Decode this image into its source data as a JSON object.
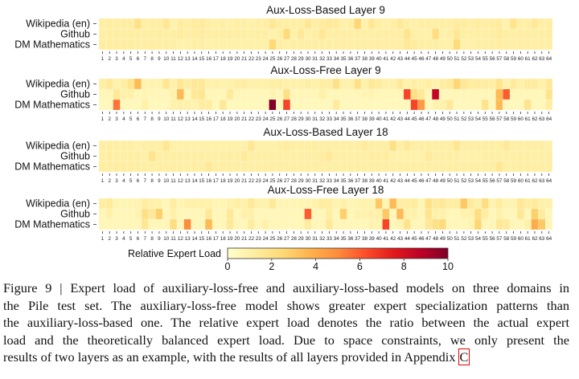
{
  "chart_data": {
    "type": "heatmap",
    "colormap": "YlOrRd",
    "clim": [
      0,
      10
    ],
    "colorbar_label": "Relative Expert Load",
    "colorbar_ticks": [
      "0",
      "2",
      "4",
      "6",
      "8",
      "10"
    ],
    "row_labels": [
      "Wikipedia (en)",
      "Github",
      "DM Mathematics"
    ],
    "column_labels": [
      "1",
      "2",
      "3",
      "4",
      "5",
      "6",
      "7",
      "8",
      "9",
      "10",
      "11",
      "12",
      "13",
      "14",
      "15",
      "16",
      "17",
      "18",
      "19",
      "20",
      "21",
      "22",
      "23",
      "24",
      "25",
      "26",
      "27",
      "28",
      "29",
      "30",
      "31",
      "32",
      "33",
      "34",
      "35",
      "36",
      "37",
      "38",
      "39",
      "40",
      "41",
      "42",
      "43",
      "44",
      "45",
      "46",
      "47",
      "48",
      "49",
      "50",
      "51",
      "52",
      "53",
      "54",
      "55",
      "56",
      "57",
      "58",
      "59",
      "60",
      "61",
      "62",
      "63",
      "64"
    ],
    "panels": [
      {
        "title": "Aux-Loss-Based Layer 9",
        "values": [
          [
            1.1,
            1.2,
            1.1,
            1.2,
            1.2,
            2.0,
            1.1,
            1.1,
            1.1,
            1.6,
            0.9,
            1.3,
            1.1,
            1.3,
            1.4,
            1.1,
            1.0,
            1.1,
            1.0,
            1.1,
            1.1,
            1.0,
            1.1,
            1.1,
            1.6,
            1.2,
            1.1,
            1.1,
            1.1,
            1.6,
            1.1,
            1.3,
            1.5,
            1.4,
            1.0,
            1.1,
            2.6,
            1.0,
            1.6,
            1.1,
            1.0,
            1.1,
            1.5,
            1.1,
            1.0,
            1.1,
            1.1,
            1.1,
            1.1,
            1.1,
            1.3,
            1.3,
            1.1,
            1.3,
            1.1,
            1.2,
            1.3,
            0.9,
            1.8,
            1.1,
            1.1,
            1.5,
            1.1,
            1.2
          ],
          [
            1.1,
            1.1,
            1.2,
            1.1,
            1.2,
            1.1,
            1.1,
            1.1,
            1.2,
            1.1,
            1.1,
            1.3,
            1.1,
            1.2,
            1.3,
            1.1,
            1.1,
            1.1,
            1.1,
            1.1,
            1.1,
            1.1,
            1.1,
            1.1,
            0.9,
            1.1,
            2.4,
            1.0,
            1.5,
            1.0,
            1.1,
            1.6,
            1.1,
            1.1,
            1.1,
            1.1,
            1.1,
            1.1,
            1.1,
            1.1,
            1.1,
            1.1,
            1.1,
            1.8,
            1.1,
            1.0,
            1.0,
            2.2,
            1.0,
            1.1,
            1.6,
            1.1,
            1.1,
            1.1,
            1.1,
            1.1,
            1.4,
            1.1,
            1.1,
            1.1,
            1.1,
            1.1,
            1.1,
            1.2
          ],
          [
            1.2,
            1.2,
            1.2,
            1.2,
            1.2,
            1.1,
            1.1,
            1.2,
            1.1,
            1.1,
            1.1,
            0.9,
            1.0,
            1.1,
            1.1,
            1.0,
            1.0,
            1.0,
            1.0,
            1.0,
            1.0,
            1.0,
            1.0,
            1.0,
            2.5,
            1.1,
            1.0,
            1.1,
            1.1,
            1.1,
            1.1,
            1.1,
            1.1,
            1.1,
            1.1,
            1.1,
            1.1,
            1.1,
            1.1,
            1.1,
            1.1,
            1.1,
            1.1,
            1.5,
            1.4,
            1.1,
            1.1,
            1.1,
            1.0,
            1.0,
            2.4,
            1.0,
            1.0,
            1.1,
            1.1,
            1.1,
            1.2,
            1.1,
            1.1,
            1.1,
            1.1,
            1.1,
            1.1,
            1.1
          ]
        ]
      },
      {
        "title": "Aux-Loss-Free Layer 9",
        "values": [
          [
            1.1,
            1.5,
            0.9,
            1.2,
            1.8,
            3.5,
            0.8,
            0.8,
            0.8,
            1.7,
            1.0,
            1.6,
            1.2,
            1.5,
            1.5,
            1.0,
            1.0,
            0.9,
            1.0,
            1.1,
            1.2,
            1.0,
            1.0,
            1.0,
            1.1,
            1.1,
            1.0,
            1.0,
            1.0,
            1.1,
            1.0,
            1.2,
            1.1,
            2.0,
            1.0,
            1.0,
            2.0,
            1.0,
            1.5,
            1.3,
            1.0,
            1.0,
            1.5,
            0.9,
            1.1,
            1.0,
            1.2,
            0.9,
            1.2,
            1.4,
            2.6,
            1.6,
            1.3,
            1.3,
            1.2,
            1.2,
            1.8,
            0.9,
            1.4,
            1.0,
            1.3,
            1.3,
            1.0,
            1.5
          ],
          [
            0.6,
            0.6,
            1.5,
            1.0,
            1.0,
            0.6,
            0.7,
            0.6,
            0.6,
            0.6,
            0.9,
            3.5,
            0.6,
            1.5,
            1.7,
            0.6,
            0.6,
            0.6,
            1.4,
            0.6,
            0.6,
            0.6,
            0.6,
            0.6,
            0.8,
            0.6,
            2.0,
            0.6,
            0.6,
            0.6,
            0.6,
            1.0,
            0.6,
            0.6,
            0.6,
            0.6,
            0.6,
            0.7,
            0.8,
            0.6,
            0.6,
            0.6,
            0.6,
            6.5,
            2.0,
            1.5,
            0.6,
            8.5,
            0.6,
            0.6,
            0.6,
            0.6,
            0.6,
            0.6,
            0.6,
            0.6,
            3.5,
            6.0,
            0.6,
            0.6,
            0.6,
            0.6,
            0.6,
            1.8
          ],
          [
            0.5,
            0.5,
            5.5,
            0.5,
            0.5,
            0.5,
            1.0,
            0.5,
            0.5,
            0.5,
            1.0,
            1.0,
            1.0,
            0.8,
            1.2,
            1.2,
            0.5,
            1.5,
            0.5,
            0.5,
            0.5,
            0.5,
            0.5,
            0.5,
            10.0,
            0.5,
            6.5,
            0.5,
            0.5,
            0.5,
            0.5,
            0.5,
            0.5,
            1.3,
            0.5,
            0.5,
            0.5,
            0.5,
            0.5,
            0.5,
            0.5,
            0.5,
            0.5,
            0.5,
            6.5,
            4.5,
            0.5,
            0.9,
            0.9,
            1.5,
            0.5,
            0.5,
            0.5,
            0.5,
            1.8,
            0.5,
            3.5,
            0.5,
            0.5,
            0.5,
            1.8,
            0.5,
            0.5,
            1.2
          ]
        ]
      },
      {
        "title": "Aux-Loss-Based Layer 18",
        "values": [
          [
            1.1,
            1.1,
            1.1,
            1.1,
            1.1,
            1.0,
            1.1,
            1.1,
            1.1,
            1.7,
            1.0,
            1.0,
            1.0,
            1.0,
            1.0,
            1.0,
            1.0,
            1.0,
            1.0,
            1.0,
            1.0,
            1.6,
            1.0,
            1.0,
            1.0,
            1.1,
            1.3,
            1.1,
            1.1,
            1.1,
            1.2,
            1.1,
            1.1,
            1.1,
            1.1,
            1.1,
            1.1,
            1.4,
            1.1,
            1.1,
            1.1,
            2.0,
            1.1,
            1.5,
            1.1,
            1.1,
            1.1,
            1.1,
            1.1,
            1.1,
            1.7,
            1.1,
            1.1,
            1.1,
            1.1,
            1.1,
            1.1,
            1.5,
            1.1,
            1.1,
            1.1,
            1.1,
            1.1,
            1.0
          ],
          [
            1.1,
            1.2,
            1.1,
            1.1,
            1.1,
            1.2,
            1.0,
            1.8,
            1.1,
            1.1,
            1.1,
            1.1,
            1.1,
            1.1,
            1.1,
            1.1,
            1.1,
            1.1,
            1.2,
            1.1,
            1.4,
            1.1,
            1.1,
            1.1,
            1.1,
            1.1,
            1.1,
            1.1,
            1.1,
            1.1,
            1.1,
            1.3,
            1.5,
            1.1,
            1.1,
            1.1,
            1.1,
            1.1,
            1.2,
            1.2,
            1.3,
            1.0,
            1.0,
            1.0,
            1.0,
            1.0,
            1.4,
            1.1,
            1.1,
            1.1,
            1.1,
            1.0,
            1.0,
            1.0,
            1.1,
            1.1,
            1.1,
            1.1,
            1.1,
            1.1,
            1.1,
            1.1,
            1.1,
            1.1
          ],
          [
            1.2,
            1.1,
            1.2,
            1.2,
            1.2,
            1.1,
            1.1,
            1.1,
            1.1,
            1.1,
            1.1,
            1.1,
            1.1,
            1.1,
            1.1,
            1.5,
            1.1,
            1.1,
            1.1,
            1.1,
            1.1,
            1.1,
            1.1,
            1.1,
            1.1,
            1.1,
            1.1,
            1.1,
            1.1,
            1.1,
            1.1,
            1.1,
            1.1,
            1.1,
            1.1,
            1.1,
            1.1,
            1.1,
            1.1,
            1.1,
            1.1,
            1.1,
            1.1,
            1.1,
            1.1,
            1.1,
            1.1,
            1.1,
            1.1,
            1.1,
            1.1,
            1.1,
            1.1,
            1.1,
            1.1,
            1.1,
            1.6,
            1.1,
            1.1,
            1.1,
            1.1,
            1.1,
            1.1,
            1.1
          ]
        ]
      },
      {
        "title": "Aux-Loss-Free Layer 18",
        "values": [
          [
            1.2,
            1.4,
            0.7,
            0.7,
            0.7,
            0.8,
            1.2,
            1.0,
            0.9,
            0.6,
            1.2,
            0.7,
            1.0,
            1.0,
            1.0,
            0.9,
            0.7,
            0.7,
            0.9,
            1.1,
            1.0,
            1.5,
            1.0,
            0.9,
            1.5,
            0.7,
            0.7,
            0.7,
            0.7,
            0.7,
            0.9,
            1.3,
            1.2,
            0.8,
            1.0,
            0.7,
            0.8,
            0.9,
            0.8,
            3.0,
            0.7,
            3.5,
            1.2,
            1.2,
            1.3,
            0.7,
            2.0,
            1.4,
            1.5,
            1.2,
            1.2,
            3.0,
            1.4,
            1.0,
            2.2,
            0.8,
            1.3,
            0.8,
            0.8,
            1.6,
            1.2,
            1.4,
            1.0,
            1.0
          ],
          [
            0.6,
            1.0,
            0.6,
            0.6,
            0.6,
            0.8,
            2.0,
            1.5,
            2.8,
            0.6,
            1.0,
            0.6,
            0.6,
            0.6,
            0.6,
            1.5,
            0.6,
            0.6,
            1.5,
            0.6,
            1.0,
            1.0,
            0.6,
            0.6,
            0.6,
            0.6,
            0.6,
            0.6,
            0.6,
            6.0,
            0.6,
            0.6,
            1.2,
            0.6,
            2.8,
            0.6,
            0.9,
            0.9,
            1.0,
            1.0,
            3.0,
            0.6,
            3.5,
            1.0,
            1.0,
            0.6,
            1.8,
            1.0,
            1.0,
            0.6,
            0.6,
            0.9,
            0.9,
            2.2,
            1.2,
            0.6,
            1.0,
            0.6,
            0.6,
            1.6,
            0.6,
            2.8,
            1.3,
            0.6
          ],
          [
            0.6,
            0.6,
            0.6,
            0.6,
            0.6,
            0.6,
            1.6,
            0.6,
            0.6,
            0.6,
            2.2,
            0.6,
            5.0,
            0.6,
            0.6,
            3.5,
            0.6,
            0.6,
            1.5,
            0.6,
            0.6,
            1.3,
            0.6,
            1.0,
            0.6,
            0.6,
            0.6,
            0.6,
            0.6,
            1.3,
            0.6,
            0.6,
            1.5,
            0.6,
            0.6,
            0.6,
            0.6,
            0.6,
            0.8,
            0.8,
            6.5,
            0.6,
            0.8,
            1.8,
            0.6,
            0.6,
            1.5,
            2.0,
            2.3,
            0.6,
            0.6,
            0.6,
            0.8,
            2.6,
            0.6,
            0.6,
            1.5,
            1.4,
            0.6,
            0.6,
            1.0,
            4.0,
            3.0,
            0.6
          ]
        ]
      }
    ]
  },
  "caption": {
    "lines": [
      "Figure 9 | Expert load of auxiliary-loss-free and auxiliary-loss-based models on three domains in",
      "the Pile test set. The auxiliary-loss-free model shows greater expert specialization patterns than",
      "the auxiliary-loss-based one. The relative expert load denotes the ratio between the actual expert",
      "load and the theoretically balanced expert load. Due to space constraints, we only present the"
    ],
    "last_line": "results of two layers as an example, with the results of all layers provided in Appendix ",
    "appendix_ref": "C"
  }
}
